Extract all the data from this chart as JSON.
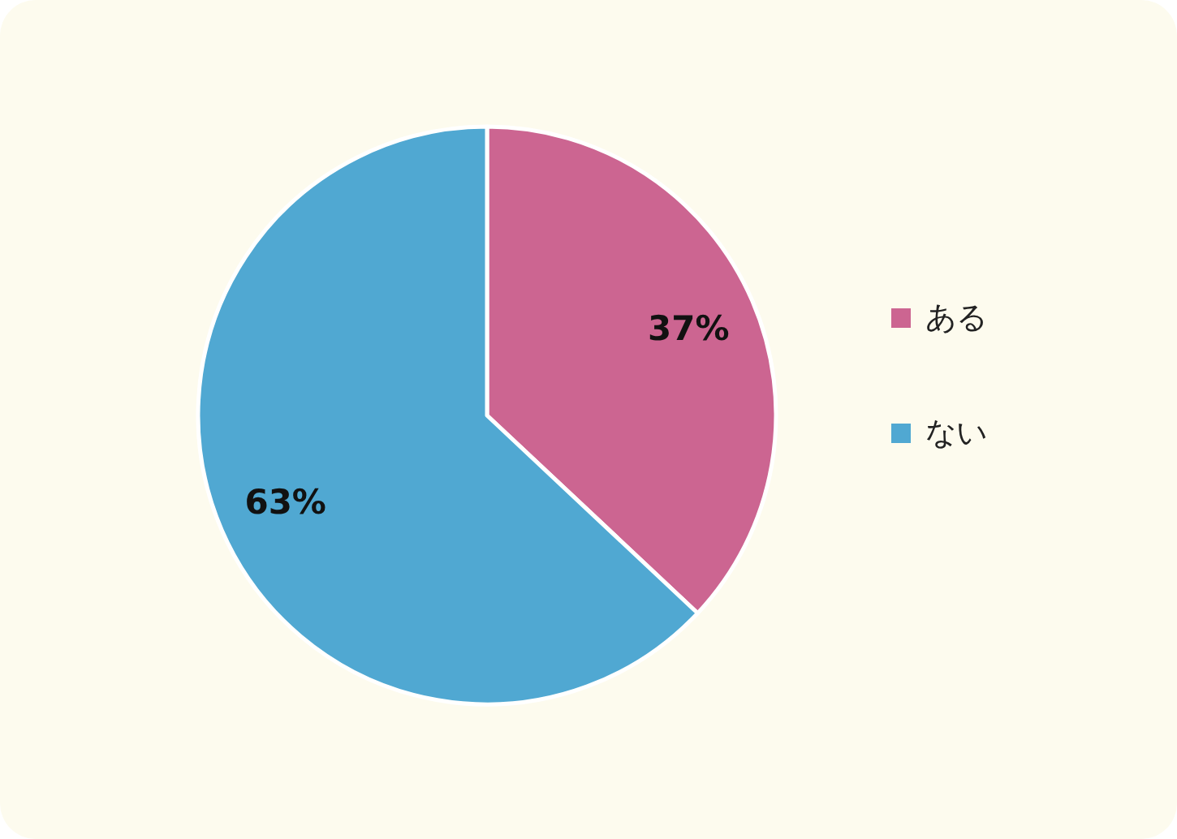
{
  "chart_data": {
    "type": "pie",
    "categories": [
      "ある",
      "ない"
    ],
    "values": [
      37,
      63
    ],
    "colors": [
      "#cc6591",
      "#50a8d2"
    ],
    "value_labels": [
      "37%",
      "63%"
    ],
    "legend": "right"
  }
}
